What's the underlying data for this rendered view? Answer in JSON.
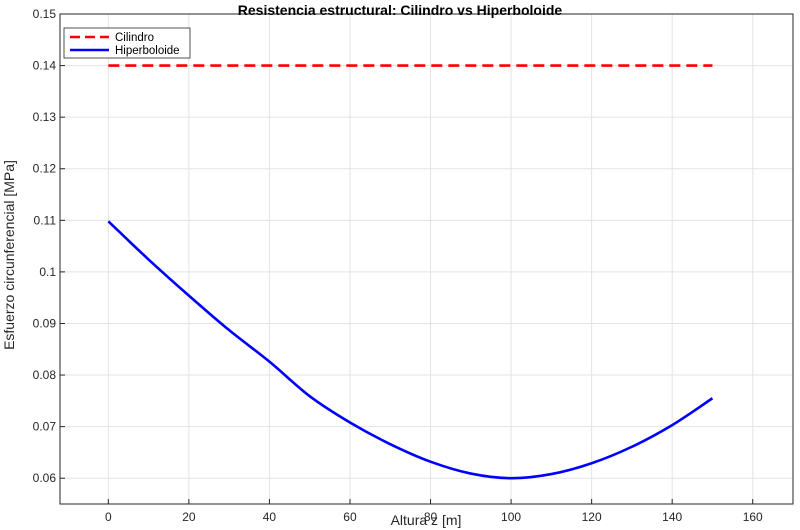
{
  "chart_data": {
    "type": "line",
    "title": "Resistencia estructural: Cilindro vs Hiperboloide",
    "xlabel": "Altura z [m]",
    "ylabel": "Esfuerzo circunferencial [MPa]",
    "xlim": [
      -12,
      170
    ],
    "ylim": [
      0.055,
      0.15
    ],
    "xticks": [
      0,
      20,
      40,
      60,
      80,
      100,
      120,
      140,
      160
    ],
    "xtick_labels": [
      "0",
      "20",
      "40",
      "60",
      "80",
      "100",
      "120",
      "140",
      "160"
    ],
    "yticks": [
      0.06,
      0.07,
      0.08,
      0.09,
      0.1,
      0.11,
      0.12,
      0.13,
      0.14,
      0.15
    ],
    "ytick_labels": [
      "0.06",
      "0.07",
      "0.08",
      "0.09",
      "0.1",
      "0.11",
      "0.12",
      "0.13",
      "0.14",
      "0.15"
    ],
    "grid": true,
    "legend_position": "top-left",
    "series": [
      {
        "name": "Cilindro",
        "color": "#ff0000",
        "style": "dashed",
        "x": [
          0,
          150
        ],
        "y": [
          0.14,
          0.14
        ]
      },
      {
        "name": "Hiperboloide",
        "color": "#0000ff",
        "style": "solid",
        "x": [
          0,
          10,
          20,
          30,
          40,
          50,
          60,
          70,
          80,
          90,
          100,
          110,
          120,
          130,
          140,
          150
        ],
        "y": [
          0.1098,
          0.1024,
          0.0954,
          0.0887,
          0.0826,
          0.0759,
          0.0708,
          0.0666,
          0.0632,
          0.0609,
          0.06,
          0.0608,
          0.0629,
          0.0661,
          0.0703,
          0.0755
        ]
      }
    ]
  }
}
